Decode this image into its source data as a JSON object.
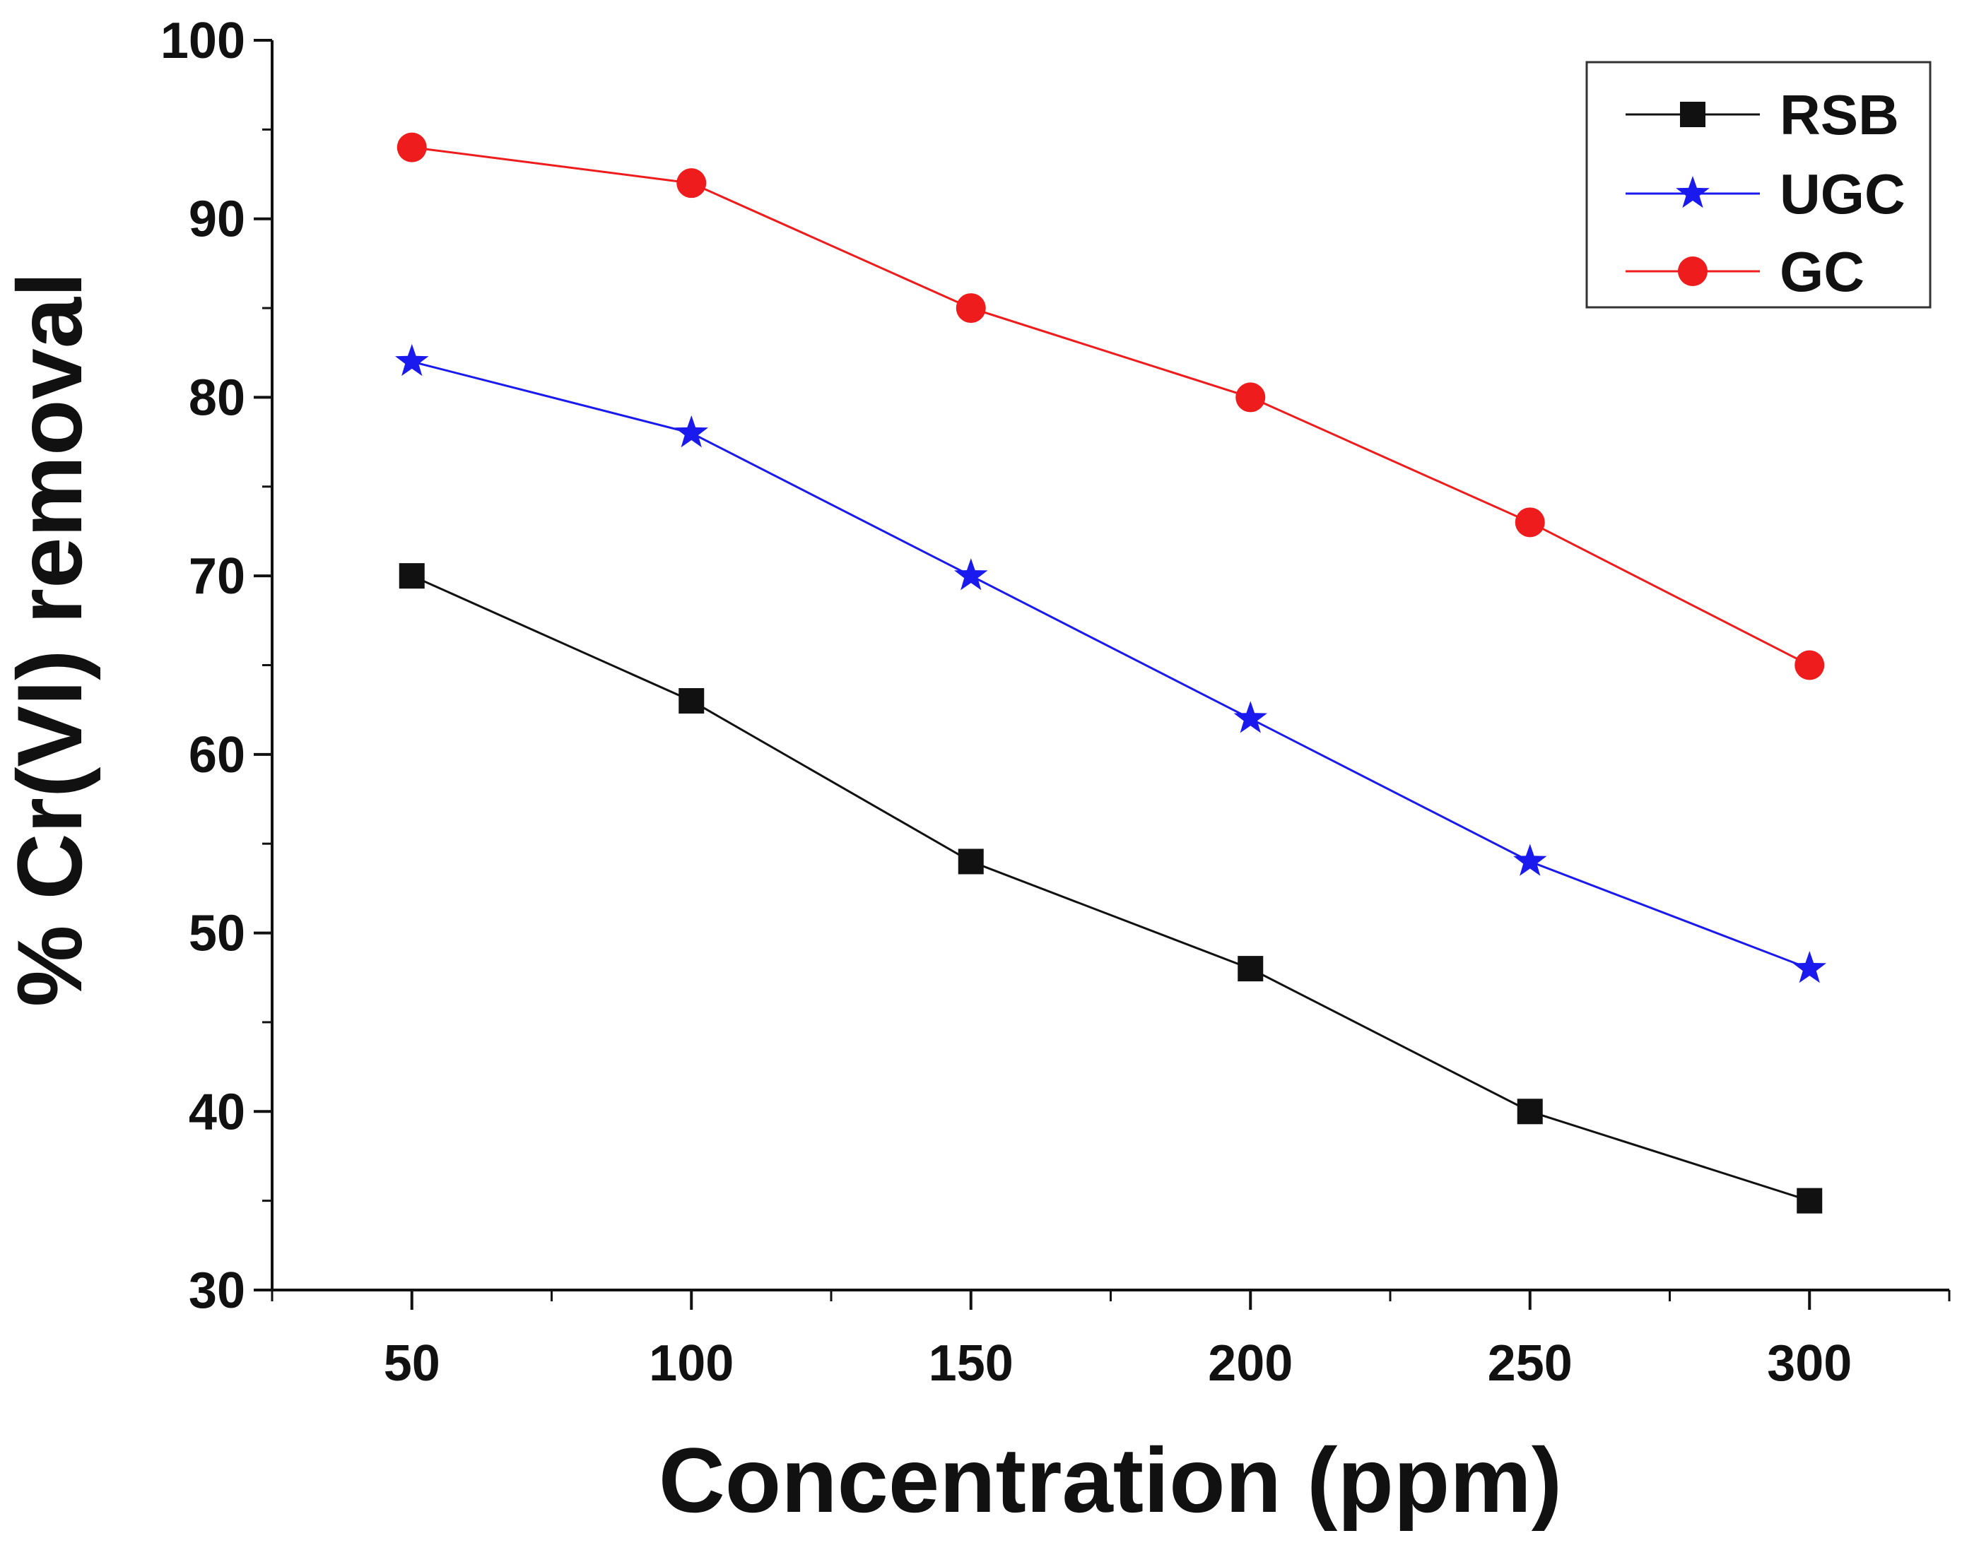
{
  "chart_data": {
    "type": "line",
    "title": "",
    "xlabel": "Concentration (ppm)",
    "ylabel": "% Cr(VI) removal",
    "x": [
      50,
      100,
      150,
      200,
      250,
      300
    ],
    "xlim": [
      25,
      325
    ],
    "ylim": [
      30,
      100
    ],
    "x_major_ticks": [
      50,
      100,
      150,
      200,
      250,
      300
    ],
    "x_tick_labels": [
      "50",
      "100",
      "150",
      "200",
      "250",
      "300"
    ],
    "y_major_ticks": [
      30,
      40,
      50,
      60,
      70,
      80,
      90,
      100
    ],
    "y_tick_labels": [
      "30",
      "40",
      "50",
      "60",
      "70",
      "80",
      "90",
      "100"
    ],
    "grid": false,
    "legend_position": "top-right",
    "series": [
      {
        "name": "RSB",
        "color": "#111111",
        "marker": "square",
        "values": [
          70,
          63,
          54,
          48,
          40,
          35
        ]
      },
      {
        "name": "UGC",
        "color": "#1a1aee",
        "marker": "star",
        "values": [
          82,
          78,
          70,
          62,
          54,
          48
        ]
      },
      {
        "name": "GC",
        "color": "#ee1c1c",
        "marker": "circle",
        "values": [
          94,
          92,
          85,
          80,
          73,
          65
        ]
      }
    ]
  }
}
